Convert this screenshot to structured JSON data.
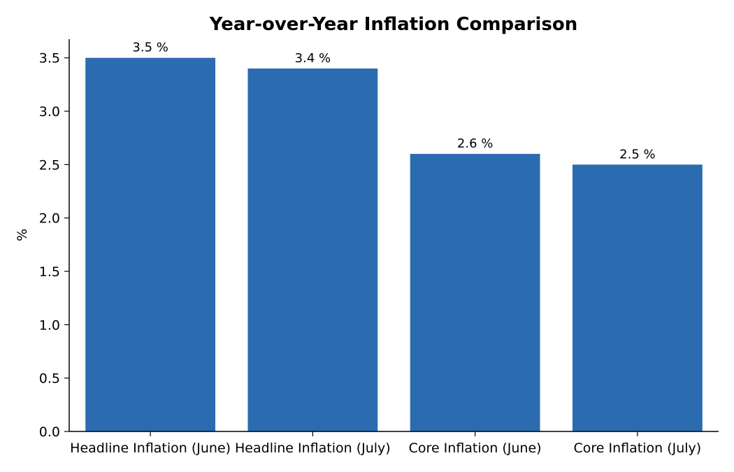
{
  "chart_data": {
    "type": "bar",
    "title": "Year-over-Year Inflation Comparison",
    "xlabel": "",
    "ylabel": "%",
    "categories": [
      "Headline Inflation (June)",
      "Headline Inflation (July)",
      "Core Inflation (June)",
      "Core Inflation (July)"
    ],
    "values": [
      3.5,
      3.4,
      2.6,
      2.5
    ],
    "value_labels": [
      "3.5 %",
      "3.4 %",
      "2.6 %",
      "2.5 %"
    ],
    "yticks": [
      0.0,
      0.5,
      1.0,
      1.5,
      2.0,
      2.5,
      3.0,
      3.5
    ],
    "ytick_labels": [
      "0.0",
      "0.5",
      "1.0",
      "1.5",
      "2.0",
      "2.5",
      "3.0",
      "3.5"
    ],
    "ylim": [
      0,
      3.675
    ],
    "grid": false,
    "bar_color": "#2b6cb0"
  }
}
